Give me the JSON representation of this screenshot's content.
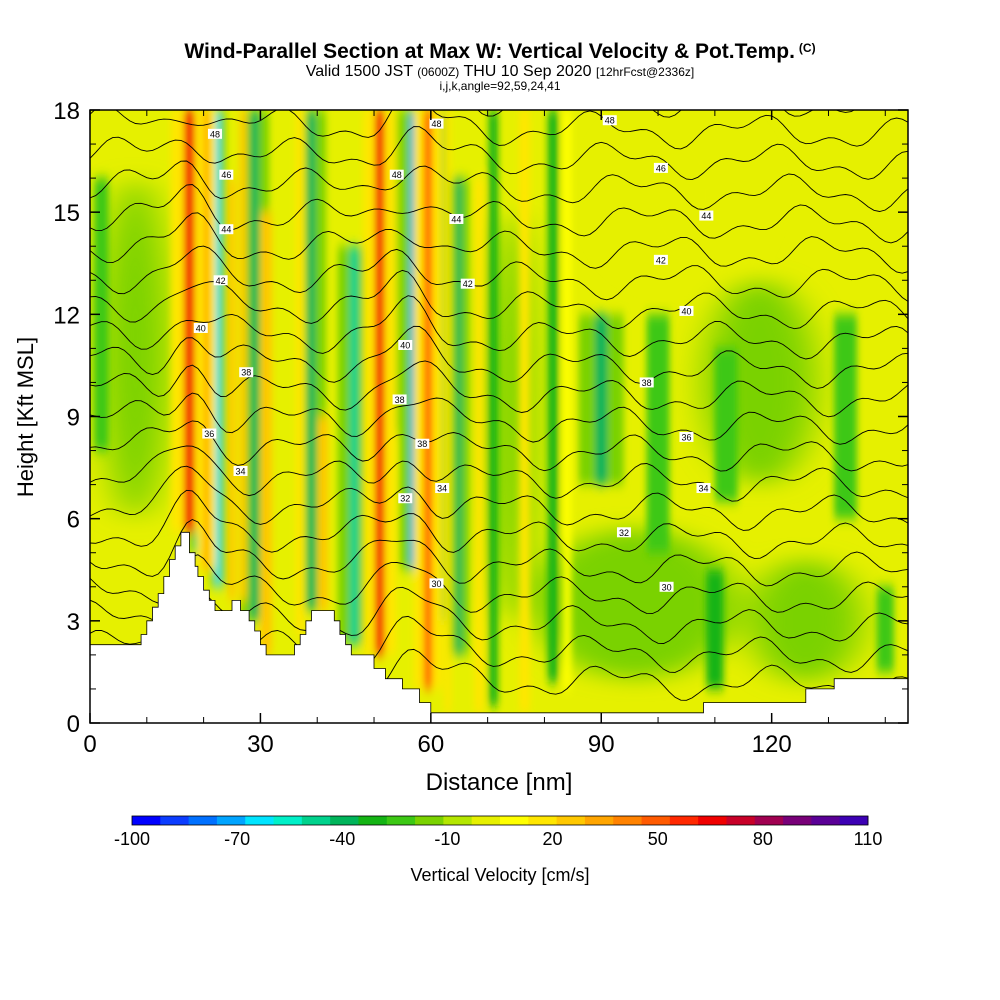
{
  "chart_data": {
    "type": "heatmap",
    "title": "Wind-Parallel Section at Max W: Vertical Velocity & Pot.Temp.",
    "title_mark": "(C)",
    "subtitle_main": "Valid 1500 JST",
    "subtitle_zulu": "(0600Z)",
    "subtitle_date": "THU 10 Sep 2020",
    "subtitle_fcst": "[12hrFcst@2336z]",
    "subtitle_index": "i,j,k,angle=92,59,24,41",
    "xlabel": "Distance [nm]",
    "ylabel": "Height [Kft MSL]",
    "xlim": [
      0,
      144
    ],
    "ylim": [
      0,
      18
    ],
    "x_ticks": [
      "0",
      "30",
      "60",
      "90",
      "120"
    ],
    "y_ticks": [
      "0",
      "3",
      "6",
      "9",
      "12",
      "15",
      "18"
    ],
    "colorbar": {
      "label": "Vertical Velocity [cm/s]",
      "min": -100,
      "max": 110,
      "step": 10,
      "tick_labels": [
        "-100",
        "-70",
        "-40",
        "-10",
        "20",
        "50",
        "80",
        "110"
      ],
      "colors": [
        "#0000ff",
        "#0b3cff",
        "#0070ff",
        "#00a4ff",
        "#00e4ff",
        "#00f0c8",
        "#00d28c",
        "#00b45a",
        "#14b414",
        "#3cc814",
        "#7ad200",
        "#b4e600",
        "#e6f000",
        "#ffff00",
        "#ffe600",
        "#ffc800",
        "#ffa500",
        "#ff8200",
        "#ff5a00",
        "#ff2800",
        "#f00000",
        "#c80028",
        "#a00050",
        "#780078",
        "#5a0096",
        "#3c00b4"
      ]
    },
    "theta_contours": {
      "units": "Pot.Temp.",
      "levels": [
        29,
        30,
        31,
        32,
        33,
        34,
        35,
        36,
        37,
        38,
        39,
        40,
        41,
        42,
        43,
        44,
        45,
        46,
        47,
        48,
        49
      ],
      "labels": [
        {
          "text": "48",
          "x": 22,
          "y": 17.3
        },
        {
          "text": "46",
          "x": 24,
          "y": 16.1
        },
        {
          "text": "44",
          "x": 24,
          "y": 14.5
        },
        {
          "text": "42",
          "x": 23,
          "y": 13.0
        },
        {
          "text": "40",
          "x": 19.5,
          "y": 11.6
        },
        {
          "text": "38",
          "x": 27.5,
          "y": 10.3
        },
        {
          "text": "36",
          "x": 21,
          "y": 8.5
        },
        {
          "text": "34",
          "x": 26.5,
          "y": 7.4
        },
        {
          "text": "48",
          "x": 61,
          "y": 17.6
        },
        {
          "text": "48",
          "x": 54,
          "y": 16.1
        },
        {
          "text": "44",
          "x": 64.5,
          "y": 14.8
        },
        {
          "text": "42",
          "x": 66.5,
          "y": 12.9
        },
        {
          "text": "40",
          "x": 55.5,
          "y": 11.1
        },
        {
          "text": "38",
          "x": 54.5,
          "y": 9.5
        },
        {
          "text": "38",
          "x": 58.5,
          "y": 8.2
        },
        {
          "text": "34",
          "x": 62,
          "y": 6.9
        },
        {
          "text": "32",
          "x": 55.5,
          "y": 6.6
        },
        {
          "text": "30",
          "x": 61,
          "y": 4.1
        },
        {
          "text": "48",
          "x": 91.5,
          "y": 17.7
        },
        {
          "text": "46",
          "x": 100.5,
          "y": 16.3
        },
        {
          "text": "44",
          "x": 108.5,
          "y": 14.9
        },
        {
          "text": "42",
          "x": 100.5,
          "y": 13.6
        },
        {
          "text": "40",
          "x": 105,
          "y": 12.1
        },
        {
          "text": "38",
          "x": 98,
          "y": 10.0
        },
        {
          "text": "36",
          "x": 105,
          "y": 8.4
        },
        {
          "text": "34",
          "x": 108,
          "y": 6.9
        },
        {
          "text": "32",
          "x": 94,
          "y": 5.6
        },
        {
          "text": "30",
          "x": 101.5,
          "y": 4.0
        }
      ]
    },
    "terrain_profile": [
      [
        0,
        2.3
      ],
      [
        9,
        2.3
      ],
      [
        9,
        2.6
      ],
      [
        10,
        2.6
      ],
      [
        10,
        3.0
      ],
      [
        11,
        3.0
      ],
      [
        11,
        3.4
      ],
      [
        12,
        3.4
      ],
      [
        12,
        3.8
      ],
      [
        13,
        3.8
      ],
      [
        13,
        4.3
      ],
      [
        14,
        4.3
      ],
      [
        14,
        4.8
      ],
      [
        15,
        4.8
      ],
      [
        15,
        5.2
      ],
      [
        16,
        5.2
      ],
      [
        16,
        5.6
      ],
      [
        17.5,
        5.6
      ],
      [
        17.5,
        5.0
      ],
      [
        18.5,
        5.0
      ],
      [
        18.5,
        4.6
      ],
      [
        19,
        4.6
      ],
      [
        19,
        4.3
      ],
      [
        20,
        4.3
      ],
      [
        20,
        3.9
      ],
      [
        21,
        3.9
      ],
      [
        21,
        3.6
      ],
      [
        22,
        3.6
      ],
      [
        22,
        3.3
      ],
      [
        25,
        3.3
      ],
      [
        25,
        3.6
      ],
      [
        26.5,
        3.6
      ],
      [
        26.5,
        3.3
      ],
      [
        28,
        3.3
      ],
      [
        28,
        3.0
      ],
      [
        29,
        3.0
      ],
      [
        29,
        2.7
      ],
      [
        30,
        2.7
      ],
      [
        30,
        2.3
      ],
      [
        31,
        2.3
      ],
      [
        31,
        2.0
      ],
      [
        36,
        2.0
      ],
      [
        36,
        2.3
      ],
      [
        37,
        2.3
      ],
      [
        37,
        2.6
      ],
      [
        38,
        2.6
      ],
      [
        38,
        3.0
      ],
      [
        39,
        3.0
      ],
      [
        39,
        3.3
      ],
      [
        43,
        3.3
      ],
      [
        43,
        3.0
      ],
      [
        44,
        3.0
      ],
      [
        44,
        2.6
      ],
      [
        45,
        2.6
      ],
      [
        45,
        2.3
      ],
      [
        46,
        2.3
      ],
      [
        46,
        2.0
      ],
      [
        50,
        2.0
      ],
      [
        50,
        1.6
      ],
      [
        52,
        1.6
      ],
      [
        52,
        1.3
      ],
      [
        55,
        1.3
      ],
      [
        55,
        1.0
      ],
      [
        58,
        1.0
      ],
      [
        58,
        0.6
      ],
      [
        60,
        0.6
      ],
      [
        60,
        0.3
      ],
      [
        108,
        0.3
      ],
      [
        108,
        0.6
      ],
      [
        126,
        0.6
      ],
      [
        126,
        1.0
      ],
      [
        131,
        1.0
      ],
      [
        131,
        1.3
      ],
      [
        144,
        1.3
      ],
      [
        144,
        0
      ],
      [
        0,
        0
      ]
    ],
    "updraft_columns": [
      {
        "x": 17.5,
        "w": 1.8,
        "ytop": 18,
        "ybot": 5.6,
        "value": 75
      },
      {
        "x": 20.5,
        "w": 0.9,
        "ytop": 18,
        "ybot": 4.5,
        "value": 35
      },
      {
        "x": 25,
        "w": 1.2,
        "ytop": 16,
        "ybot": 3.6,
        "value": 30
      },
      {
        "x": 27,
        "w": 1.2,
        "ytop": 18,
        "ybot": 3.6,
        "value": 30
      },
      {
        "x": 31,
        "w": 2.0,
        "ytop": 15,
        "ybot": 2.0,
        "value": 30
      },
      {
        "x": 37,
        "w": 1.6,
        "ytop": 18,
        "ybot": 2.6,
        "value": 25
      },
      {
        "x": 41,
        "w": 1.8,
        "ytop": 9,
        "ybot": 3.3,
        "value": 30
      },
      {
        "x": 51,
        "w": 1.6,
        "ytop": 18,
        "ybot": 2.0,
        "value": 70
      },
      {
        "x": 59.5,
        "w": 1.4,
        "ytop": 18,
        "ybot": 1.0,
        "value": 55
      },
      {
        "x": 63,
        "w": 1.0,
        "ytop": 18,
        "ybot": 0.3,
        "value": 25
      },
      {
        "x": 68.5,
        "w": 1.6,
        "ytop": 16,
        "ybot": 0.3,
        "value": 25
      },
      {
        "x": 76.5,
        "w": 1.8,
        "ytop": 18,
        "ybot": 0.3,
        "value": 18
      },
      {
        "x": 84,
        "w": 1.5,
        "ytop": 18,
        "ybot": 1.0,
        "value": 15
      }
    ],
    "downdraft_columns": [
      {
        "x": 2,
        "w": 2.5,
        "ytop": 16,
        "ybot": 8,
        "value": -20
      },
      {
        "x": 19.2,
        "w": 1.0,
        "ytop": 18,
        "ybot": 5.0,
        "value": -60
      },
      {
        "x": 22.5,
        "w": 0.8,
        "ytop": 18,
        "ybot": 4.0,
        "value": -60
      },
      {
        "x": 29,
        "w": 1.4,
        "ytop": 18,
        "ybot": 3.0,
        "value": -35
      },
      {
        "x": 39,
        "w": 1.4,
        "ytop": 18,
        "ybot": 3.3,
        "value": -35
      },
      {
        "x": 46.5,
        "w": 1.6,
        "ytop": 14,
        "ybot": 2.3,
        "value": -45
      },
      {
        "x": 52.5,
        "w": 1.0,
        "ytop": 18,
        "ybot": 8.5,
        "value": -70
      },
      {
        "x": 57,
        "w": 1.4,
        "ytop": 18,
        "ybot": 4.5,
        "value": -70
      },
      {
        "x": 61.5,
        "w": 1.1,
        "ytop": 18,
        "ybot": 3.0,
        "value": -70
      },
      {
        "x": 65,
        "w": 1.0,
        "ytop": 16,
        "ybot": 2.0,
        "value": -40
      },
      {
        "x": 71,
        "w": 1.6,
        "ytop": 18,
        "ybot": 0.5,
        "value": -30
      },
      {
        "x": 81.5,
        "w": 1.8,
        "ytop": 18,
        "ybot": 1.2,
        "value": -30
      },
      {
        "x": 90,
        "w": 2.2,
        "ytop": 12,
        "ybot": 7.0,
        "value": -35
      },
      {
        "x": 100,
        "w": 4.0,
        "ytop": 12,
        "ybot": 5.0,
        "value": -20
      },
      {
        "x": 112,
        "w": 4.0,
        "ytop": 11,
        "ybot": 6.5,
        "value": -20
      },
      {
        "x": 133,
        "w": 4.0,
        "ytop": 12,
        "ybot": 6.0,
        "value": -20
      },
      {
        "x": 110,
        "w": 3.0,
        "ytop": 4.5,
        "ybot": 1.0,
        "value": -25
      },
      {
        "x": 140,
        "w": 3.0,
        "ytop": 4,
        "ybot": 1.5,
        "value": -20
      }
    ],
    "background_patches": [
      {
        "x": 8,
        "y": 11,
        "rx": 6,
        "ry": 5,
        "value": -15
      },
      {
        "x": 118,
        "y": 10,
        "rx": 10,
        "ry": 3,
        "value": -15
      },
      {
        "x": 96,
        "y": 3.5,
        "rx": 18,
        "ry": 2.2,
        "value": -12
      },
      {
        "x": 126,
        "y": 3.0,
        "rx": 10,
        "ry": 1.8,
        "value": -12
      },
      {
        "x": 74,
        "y": 9,
        "rx": 4,
        "ry": 6,
        "value": -12
      },
      {
        "x": 104,
        "y": 15.5,
        "rx": 12,
        "ry": 2.5,
        "value": 5
      }
    ]
  }
}
